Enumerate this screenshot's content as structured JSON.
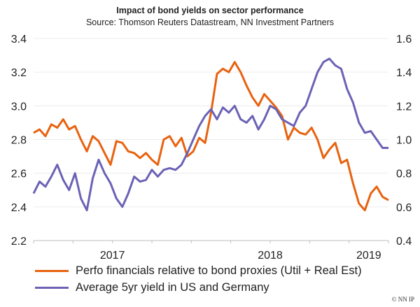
{
  "chart_data": {
    "type": "line",
    "title": "Impact of bond yields on sector performance",
    "subtitle": "Source: Thomson Reuters Datastream, NN Investment Partners",
    "x_unit": "quarters since start",
    "xlim": [
      0,
      9
    ],
    "x_tick_count": 10,
    "x_labels": [
      {
        "label": "2017",
        "x": 2
      },
      {
        "label": "2018",
        "x": 6
      },
      {
        "label": "2019",
        "x": 8.5
      }
    ],
    "y_left": {
      "ticks": [
        "2.2",
        "2.4",
        "2.6",
        "2.8",
        "3.0",
        "3.2",
        "3.4"
      ],
      "ylim": [
        2.2,
        3.4
      ]
    },
    "y_right": {
      "ticks": [
        "0.4",
        "0.6",
        "0.8",
        "1.0",
        "1.2",
        "1.4",
        "1.6"
      ],
      "ylim": [
        0.4,
        1.6
      ]
    },
    "grid": true,
    "legend_position": "bottom",
    "series": [
      {
        "name": "Perfo financials relative to bond proxies (Util + Real Est)",
        "axis": "left",
        "color": "#E8620F",
        "x": [
          0,
          0.15,
          0.3,
          0.45,
          0.6,
          0.75,
          0.9,
          1.05,
          1.2,
          1.35,
          1.5,
          1.65,
          1.8,
          1.95,
          2.1,
          2.25,
          2.4,
          2.55,
          2.7,
          2.85,
          3.0,
          3.15,
          3.3,
          3.45,
          3.6,
          3.75,
          3.9,
          4.05,
          4.2,
          4.35,
          4.5,
          4.65,
          4.8,
          4.95,
          5.1,
          5.25,
          5.4,
          5.55,
          5.7,
          5.85,
          6.0,
          6.15,
          6.3,
          6.45,
          6.6,
          6.75,
          6.9,
          7.05,
          7.2,
          7.35,
          7.5,
          7.65,
          7.8,
          7.95,
          8.1,
          8.25,
          8.4,
          8.55,
          8.7,
          8.85,
          9.0
        ],
        "values": [
          2.84,
          2.86,
          2.82,
          2.89,
          2.87,
          2.92,
          2.86,
          2.88,
          2.8,
          2.73,
          2.82,
          2.79,
          2.72,
          2.65,
          2.79,
          2.78,
          2.73,
          2.72,
          2.69,
          2.72,
          2.68,
          2.65,
          2.8,
          2.82,
          2.76,
          2.81,
          2.7,
          2.73,
          2.81,
          2.78,
          2.96,
          3.19,
          3.22,
          3.2,
          3.26,
          3.2,
          3.12,
          3.05,
          3.0,
          3.07,
          3.03,
          2.99,
          2.94,
          2.8,
          2.87,
          2.84,
          2.83,
          2.87,
          2.8,
          2.69,
          2.74,
          2.78,
          2.66,
          2.68,
          2.54,
          2.42,
          2.38,
          2.48,
          2.52,
          2.46,
          2.44
        ]
      },
      {
        "name": "Average 5yr yield in US and Germany",
        "axis": "right",
        "color": "#6B62B5",
        "x": [
          0,
          0.15,
          0.3,
          0.45,
          0.6,
          0.75,
          0.9,
          1.05,
          1.2,
          1.35,
          1.5,
          1.65,
          1.8,
          1.95,
          2.1,
          2.25,
          2.4,
          2.55,
          2.7,
          2.85,
          3.0,
          3.15,
          3.3,
          3.45,
          3.6,
          3.75,
          3.9,
          4.05,
          4.2,
          4.35,
          4.5,
          4.65,
          4.8,
          4.95,
          5.1,
          5.25,
          5.4,
          5.55,
          5.7,
          5.85,
          6.0,
          6.15,
          6.3,
          6.45,
          6.6,
          6.75,
          6.9,
          7.05,
          7.2,
          7.35,
          7.5,
          7.65,
          7.8,
          7.95,
          8.1,
          8.25,
          8.4,
          8.55,
          8.7,
          8.85,
          9.0
        ],
        "values": [
          0.68,
          0.75,
          0.72,
          0.78,
          0.85,
          0.76,
          0.7,
          0.8,
          0.65,
          0.58,
          0.77,
          0.88,
          0.8,
          0.74,
          0.65,
          0.6,
          0.68,
          0.78,
          0.75,
          0.76,
          0.82,
          0.78,
          0.82,
          0.83,
          0.82,
          0.85,
          0.92,
          1.0,
          1.08,
          1.14,
          1.18,
          1.12,
          1.19,
          1.16,
          1.2,
          1.12,
          1.1,
          1.14,
          1.06,
          1.12,
          1.2,
          1.18,
          1.12,
          1.1,
          1.08,
          1.16,
          1.2,
          1.3,
          1.4,
          1.46,
          1.48,
          1.44,
          1.42,
          1.3,
          1.22,
          1.1,
          1.04,
          1.05,
          1.0,
          0.95,
          0.95
        ]
      }
    ]
  },
  "legend": [
    {
      "label": "Perfo financials relative to bond proxies (Util + Real Est)",
      "color": "#E8620F"
    },
    {
      "label": "Average 5yr yield in US and Germany",
      "color": "#6B62B5"
    }
  ],
  "copyright": "© NN IP"
}
